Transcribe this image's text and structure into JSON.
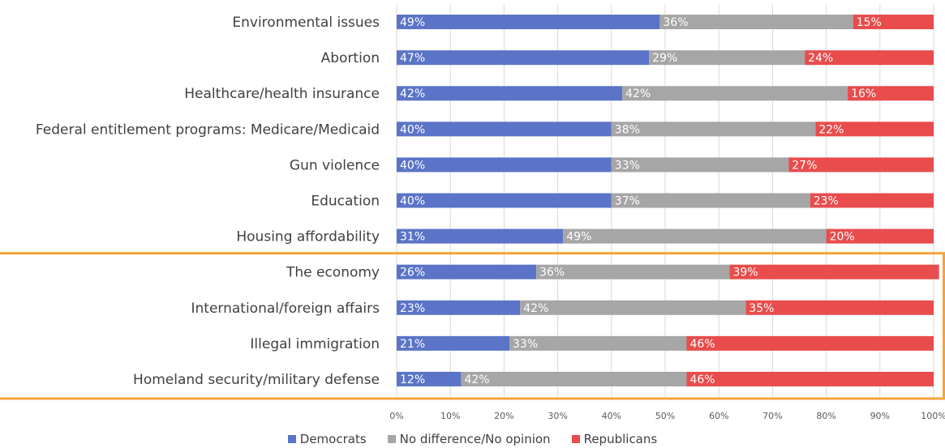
{
  "chart_data": {
    "type": "bar",
    "orientation": "horizontal",
    "stacked": true,
    "categories": [
      "Environmental issues",
      "Abortion",
      "Healthcare/health insurance",
      "Federal entitlement programs: Medicare/Medicaid",
      "Gun violence",
      "Education",
      "Housing affordability",
      "The economy",
      "International/foreign affairs",
      "Illegal immigration",
      "Homeland security/military defense"
    ],
    "series": [
      {
        "name": "Democrats",
        "color": "#5b74c7",
        "values": [
          49,
          47,
          42,
          40,
          40,
          40,
          31,
          26,
          23,
          21,
          12
        ]
      },
      {
        "name": "No difference/No opinion",
        "color": "#a6a6a6",
        "values": [
          36,
          29,
          42,
          38,
          33,
          37,
          49,
          36,
          42,
          33,
          42
        ]
      },
      {
        "name": "Republicans",
        "color": "#e84c4c",
        "values": [
          15,
          24,
          16,
          22,
          27,
          23,
          20,
          39,
          35,
          46,
          46
        ]
      }
    ],
    "xlim": [
      0,
      100
    ],
    "x_ticks": [
      "0%",
      "10%",
      "20%",
      "30%",
      "40%",
      "50%",
      "60%",
      "70%",
      "80%",
      "90%",
      "100%"
    ],
    "value_suffix": "%",
    "grid": true,
    "legend_position": "bottom",
    "highlight": {
      "from_category": "The economy",
      "to_category": "Homeland security/military defense",
      "color": "#f5a33b"
    }
  }
}
